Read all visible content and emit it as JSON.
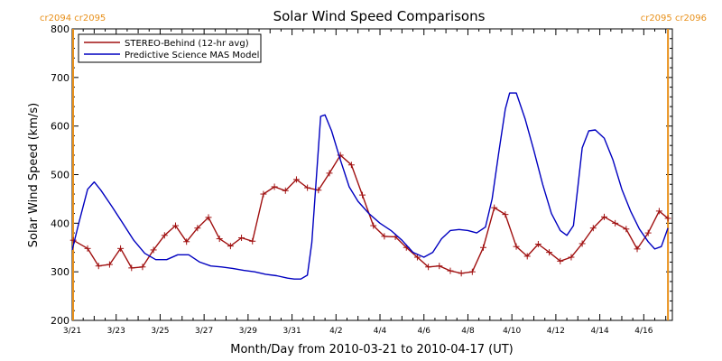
{
  "chart_data": {
    "type": "line",
    "title": "Solar Wind Speed Comparisons",
    "xlabel": "Month/Day from 2010-03-21 to 2010-04-17 (UT)",
    "ylabel": "Solar Wind Speed (km/s)",
    "xlim_days": [
      0,
      27.3
    ],
    "ylim": [
      200,
      800
    ],
    "y_ticks": [
      "200",
      "300",
      "400",
      "500",
      "600",
      "700",
      "800"
    ],
    "x_tick_labels": [
      "3/21",
      "3/23",
      "3/25",
      "3/27",
      "3/29",
      "3/31",
      "4/2",
      "4/4",
      "4/6",
      "4/8",
      "4/10",
      "4/12",
      "4/14",
      "4/16"
    ],
    "x_tick_days": [
      0,
      2,
      4,
      6,
      8,
      10,
      12,
      14,
      16,
      18,
      20,
      22,
      24,
      26
    ],
    "legend_position": "top-left",
    "carrington_labels": {
      "left": "cr2094 cr2095",
      "right": "cr2095 cr2096",
      "left_day": 0,
      "right_day": 27.1,
      "color": "#e8901a"
    },
    "series": [
      {
        "name": "STEREO-Behind (12-hr avg)",
        "color": "#a01010",
        "marker": "+",
        "x": [
          0.05,
          0.7,
          1.2,
          1.7,
          2.2,
          2.7,
          3.2,
          3.7,
          4.2,
          4.7,
          5.2,
          5.7,
          6.2,
          6.7,
          7.2,
          7.7,
          8.2,
          8.7,
          9.2,
          9.7,
          10.2,
          10.7,
          11.2,
          11.7,
          12.2,
          12.7,
          13.2,
          13.7,
          14.2,
          14.7,
          15.2,
          15.7,
          16.2,
          16.7,
          17.2,
          17.7,
          18.2,
          18.7,
          19.2,
          19.7,
          20.2,
          20.7,
          21.2,
          21.7,
          22.2,
          22.7,
          23.2,
          23.7,
          24.2,
          24.7,
          25.2,
          25.7,
          26.2,
          26.7,
          27.1
        ],
        "values": [
          365,
          348,
          312,
          315,
          348,
          308,
          310,
          345,
          375,
          395,
          362,
          390,
          412,
          368,
          353,
          370,
          363,
          460,
          475,
          467,
          490,
          473,
          468,
          503,
          540,
          520,
          458,
          395,
          373,
          372,
          350,
          330,
          310,
          312,
          302,
          297,
          300,
          350,
          432,
          418,
          352,
          332,
          357,
          340,
          322,
          330,
          358,
          390,
          413,
          400,
          388,
          347,
          380,
          425,
          410
        ]
      },
      {
        "name": "Predictive Science MAS Model",
        "color": "#0000c0",
        "marker": "",
        "x": [
          0,
          0.3,
          0.7,
          1.0,
          1.3,
          1.8,
          2.3,
          2.8,
          3.3,
          3.8,
          4.3,
          4.8,
          5.3,
          5.8,
          6.3,
          6.8,
          7.3,
          7.8,
          8.3,
          8.8,
          9.3,
          9.8,
          10.1,
          10.4,
          10.7,
          10.9,
          11.1,
          11.3,
          11.5,
          11.8,
          12.2,
          12.6,
          13.0,
          13.5,
          14.0,
          14.5,
          15.0,
          15.5,
          16.0,
          16.4,
          16.8,
          17.2,
          17.6,
          18.0,
          18.4,
          18.8,
          19.1,
          19.4,
          19.7,
          19.9,
          20.2,
          20.6,
          21.0,
          21.4,
          21.8,
          22.2,
          22.5,
          22.8,
          23.0,
          23.2,
          23.5,
          23.8,
          24.2,
          24.6,
          25.0,
          25.4,
          25.8,
          26.2,
          26.5,
          26.8,
          27.1
        ],
        "values": [
          345,
          400,
          470,
          485,
          468,
          435,
          400,
          365,
          338,
          325,
          325,
          335,
          335,
          320,
          312,
          310,
          307,
          303,
          300,
          295,
          292,
          287,
          285,
          285,
          293,
          360,
          490,
          620,
          623,
          590,
          530,
          475,
          445,
          420,
          400,
          385,
          365,
          340,
          330,
          340,
          368,
          385,
          387,
          385,
          380,
          392,
          450,
          545,
          635,
          668,
          668,
          615,
          550,
          480,
          420,
          385,
          375,
          395,
          475,
          555,
          590,
          592,
          575,
          530,
          470,
          425,
          388,
          362,
          347,
          352,
          390
        ]
      }
    ]
  }
}
